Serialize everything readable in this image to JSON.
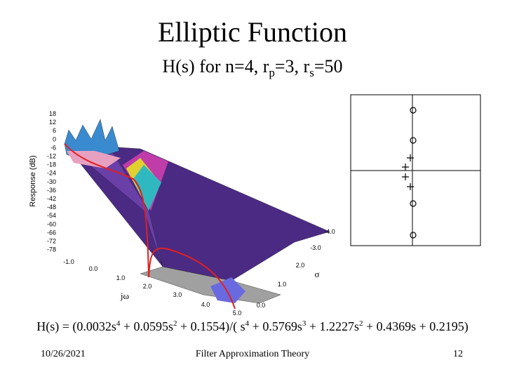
{
  "header": {
    "title": "Elliptic Function",
    "subtitle": [
      "H(s) for n=4, r",
      "p",
      "=3, r",
      "s",
      "=50"
    ]
  },
  "plot": {
    "y_axis_label": "Response (dB)",
    "y_tick_labels": [
      "18",
      "12",
      "6",
      "0",
      "-6",
      "-12",
      "-18",
      "-24",
      "-30",
      "-36",
      "-42",
      "-48",
      "-54",
      "-60",
      "-66",
      "-72",
      "-78"
    ],
    "jw_axis_label": "jω",
    "jw_tick_labels": [
      "-1.0",
      "0.0",
      "1.0",
      "2.0",
      "3.0",
      "4.0",
      "5.0"
    ],
    "sigma_axis_label": "σ",
    "sigma_tick_labels": [
      "-4.0",
      "-3.0",
      "2.0",
      "1.0",
      "0.0"
    ]
  },
  "equation": [
    "H(s) = (0.0032s",
    "4",
    " + 0.0595s",
    "2",
    " + 0.1554)/( s",
    "4",
    " + 0.5769s",
    "3",
    " + 1.2227s",
    "2",
    " + 0.4369s + 0.2195)"
  ],
  "footer": {
    "date": "10/26/2021",
    "title": "Filter Approximation Theory",
    "page": "12"
  }
}
